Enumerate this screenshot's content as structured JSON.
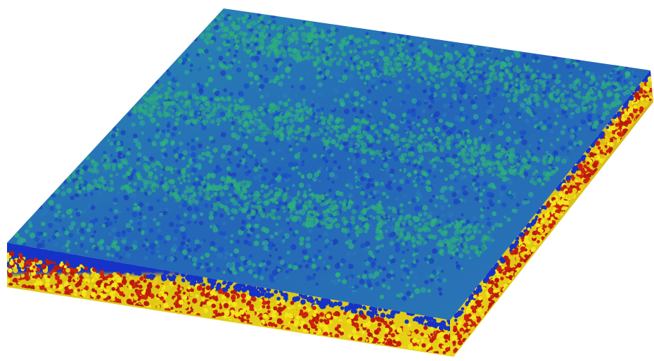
{
  "scene": {
    "subject": "molecular-slab",
    "background_color": "#ffffff",
    "top_layer_colors": [
      "#1f3fbf",
      "#2a78b8",
      "#2fa39a",
      "#2cb57a",
      "#1a4fc8"
    ],
    "band_color": "#2db07a",
    "interface_color": "#1533c8",
    "substrate_colors": [
      "#f2e61a",
      "#e6cc12",
      "#cc2211",
      "#b81a10"
    ]
  }
}
